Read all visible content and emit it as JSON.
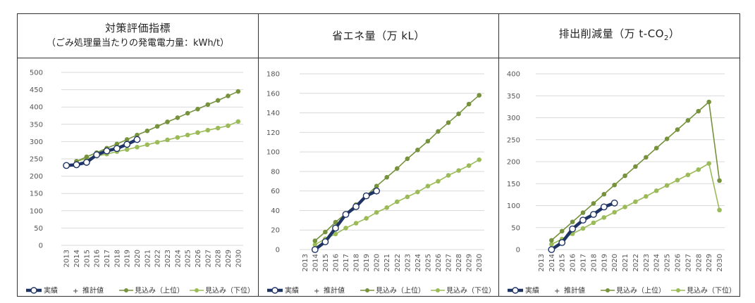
{
  "colors": {
    "actual": "#1f3464",
    "upper": "#76923c",
    "lower": "#9bbb59",
    "grid": "#d9d9d9"
  },
  "legend": {
    "actual": "実績",
    "estimate": "推計値",
    "upper": "見込み（上位）",
    "lower": "見込み（下位）",
    "estimate_marker": "+"
  },
  "chart_data": [
    {
      "type": "line",
      "title": "対策評価指標",
      "subtitle": "（ごみ処理量当たりの発電電力量：kWh/t）",
      "ylim": [
        0,
        500
      ],
      "yticks": [
        "0",
        "50",
        "100",
        "150",
        "200",
        "250",
        "300",
        "350",
        "400",
        "450",
        "500"
      ],
      "categories": [
        "2013",
        "2014",
        "2015",
        "2016",
        "2017",
        "2018",
        "2019",
        "2020",
        "2021",
        "2022",
        "2023",
        "2024",
        "2025",
        "2026",
        "2027",
        "2028",
        "2029",
        "2030"
      ],
      "series": [
        {
          "name": "実績",
          "x": [
            "2013",
            "2014",
            "2015",
            "2016",
            "2017",
            "2018",
            "2019",
            "2020"
          ],
          "values": [
            231,
            233,
            240,
            262,
            273,
            280,
            292,
            306
          ]
        },
        {
          "name": "見込み（上位）",
          "x": [
            "2014",
            "2015",
            "2016",
            "2017",
            "2018",
            "2019",
            "2020",
            "2021",
            "2022",
            "2023",
            "2024",
            "2025",
            "2026",
            "2027",
            "2028",
            "2029",
            "2030"
          ],
          "values": [
            243,
            256,
            268,
            281,
            293,
            306,
            319,
            331,
            344,
            357,
            369,
            382,
            394,
            407,
            419,
            432,
            445
          ]
        },
        {
          "name": "見込み（下位）",
          "x": [
            "2014",
            "2015",
            "2016",
            "2017",
            "2018",
            "2019",
            "2020",
            "2021",
            "2022",
            "2023",
            "2024",
            "2025",
            "2026",
            "2027",
            "2028",
            "2029",
            "2030"
          ],
          "values": [
            243,
            251,
            258,
            264,
            271,
            277,
            284,
            291,
            298,
            305,
            312,
            319,
            326,
            333,
            339,
            346,
            358
          ]
        }
      ]
    },
    {
      "type": "line",
      "title": "省エネ量（万 kL）",
      "subtitle": "",
      "ylim": [
        0,
        180
      ],
      "yticks": [
        "0",
        "20",
        "40",
        "60",
        "80",
        "100",
        "120",
        "140",
        "160",
        "180"
      ],
      "categories": [
        "2013",
        "2014",
        "2015",
        "2016",
        "2017",
        "2018",
        "2019",
        "2020",
        "2021",
        "2022",
        "2023",
        "2024",
        "2025",
        "2026",
        "2027",
        "2028",
        "2029",
        "2030"
      ],
      "series": [
        {
          "name": "実績",
          "x": [
            "2014",
            "2015",
            "2016",
            "2017",
            "2018",
            "2019",
            "2020"
          ],
          "values": [
            0,
            8,
            22,
            36,
            44,
            55,
            60
          ]
        },
        {
          "name": "見込み（上位）",
          "x": [
            "2014",
            "2015",
            "2016",
            "2017",
            "2018",
            "2019",
            "2020",
            "2021",
            "2022",
            "2023",
            "2024",
            "2025",
            "2026",
            "2027",
            "2028",
            "2029",
            "2030"
          ],
          "values": [
            9,
            18,
            28,
            37,
            46,
            55,
            65,
            74,
            83,
            93,
            102,
            111,
            121,
            130,
            139,
            149,
            158
          ]
        },
        {
          "name": "見込み（下位）",
          "x": [
            "2014",
            "2015",
            "2016",
            "2017",
            "2018",
            "2019",
            "2020",
            "2021",
            "2022",
            "2023",
            "2024",
            "2025",
            "2026",
            "2027",
            "2028",
            "2029",
            "2030"
          ],
          "values": [
            5,
            11,
            16,
            22,
            27,
            32,
            38,
            43,
            49,
            54,
            59,
            65,
            70,
            76,
            81,
            86,
            92
          ]
        }
      ]
    },
    {
      "type": "line",
      "title": "排出削減量（万 t-CO",
      "title_sub": "2",
      "title_end": "）",
      "subtitle": "",
      "ylim": [
        0,
        400
      ],
      "yticks": [
        "0",
        "50",
        "100",
        "150",
        "200",
        "250",
        "300",
        "350",
        "400"
      ],
      "categories": [
        "2013",
        "2014",
        "2015",
        "2016",
        "2017",
        "2018",
        "2019",
        "2020",
        "2021",
        "2022",
        "2023",
        "2024",
        "2025",
        "2026",
        "2027",
        "2028",
        "2029",
        "2030"
      ],
      "series": [
        {
          "name": "実績",
          "x": [
            "2014",
            "2015",
            "2016",
            "2017",
            "2018",
            "2019",
            "2020"
          ],
          "values": [
            0,
            16,
            47,
            67,
            80,
            97,
            106
          ]
        },
        {
          "name": "見込み（上位）",
          "x": [
            "2014",
            "2015",
            "2016",
            "2017",
            "2018",
            "2019",
            "2020",
            "2021",
            "2022",
            "2023",
            "2024",
            "2025",
            "2026",
            "2027",
            "2028",
            "2029",
            "2030"
          ],
          "values": [
            21,
            42,
            63,
            84,
            105,
            126,
            147,
            168,
            189,
            210,
            231,
            252,
            273,
            294,
            315,
            336,
            157
          ]
        },
        {
          "name": "見込み（下位）",
          "x": [
            "2014",
            "2015",
            "2016",
            "2017",
            "2018",
            "2019",
            "2020",
            "2021",
            "2022",
            "2023",
            "2024",
            "2025",
            "2026",
            "2027",
            "2028",
            "2029",
            "2030"
          ],
          "values": [
            12,
            24,
            36,
            48,
            61,
            73,
            85,
            97,
            109,
            121,
            134,
            146,
            158,
            170,
            182,
            196,
            90
          ]
        }
      ]
    }
  ]
}
